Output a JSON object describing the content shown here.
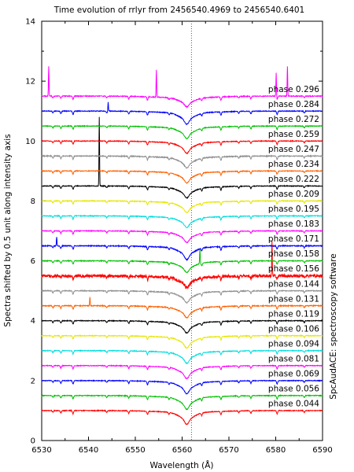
{
  "chart_data": {
    "type": "line",
    "title": "Time evolution of rrlyr from 2456540.4969 to 2456540.6401",
    "xlabel": "Wavelength (Å)",
    "ylabel": "Spectra shifted by 0.5 unit along intensity axis",
    "side_note": "SpcAudACE: spectroscopy software",
    "xlim": [
      6530,
      6590
    ],
    "ylim": [
      0,
      14
    ],
    "x_ticks": [
      "6530",
      "6540",
      "6550",
      "6560",
      "6570",
      "6580",
      "6590"
    ],
    "y_ticks": [
      "0",
      "2",
      "4",
      "6",
      "8",
      "10",
      "12",
      "14"
    ],
    "reference_line_x": 6562,
    "grid": false,
    "legend": "labels at right end of each spectrum",
    "line_center": 6561,
    "telluric_lines": [
      6532.4,
      6534.1,
      6536.7,
      6543.9,
      6548.6,
      6552.6,
      6557.2,
      6564.2,
      6568.3,
      6572.1,
      6574.7,
      6580.3,
      6586.1
    ],
    "series": [
      {
        "name": "phase 0.044",
        "offset": 1.0,
        "color": "#ff0000",
        "depth": 0.4,
        "noise": 0.012,
        "spikes": []
      },
      {
        "name": "phase 0.056",
        "offset": 1.5,
        "color": "#00c000",
        "depth": 0.4,
        "noise": 0.012,
        "spikes": []
      },
      {
        "name": "phase 0.069",
        "offset": 2.0,
        "color": "#0000ff",
        "depth": 0.38,
        "noise": 0.012,
        "spikes": []
      },
      {
        "name": "phase 0.081",
        "offset": 2.5,
        "color": "#ff00ff",
        "depth": 0.37,
        "noise": 0.012,
        "spikes": []
      },
      {
        "name": "phase 0.094",
        "offset": 3.0,
        "color": "#00dddd",
        "depth": 0.36,
        "noise": 0.012,
        "spikes": []
      },
      {
        "name": "phase 0.106",
        "offset": 3.5,
        "color": "#e6e600",
        "depth": 0.35,
        "noise": 0.012,
        "spikes": []
      },
      {
        "name": "phase 0.119",
        "offset": 4.0,
        "color": "#000000",
        "depth": 0.35,
        "noise": 0.012,
        "spikes": []
      },
      {
        "name": "phase 0.131",
        "offset": 4.5,
        "color": "#ff6000",
        "depth": 0.34,
        "noise": 0.014,
        "spikes": [
          [
            6540.3,
            0.3
          ]
        ]
      },
      {
        "name": "phase 0.144",
        "offset": 5.0,
        "color": "#909090",
        "depth": 0.34,
        "noise": 0.014,
        "spikes": []
      },
      {
        "name": "phase 0.156",
        "offset": 5.5,
        "color": "#ff0000",
        "depth": 0.33,
        "noise": 0.05,
        "spikes": [
          [
            6579.2,
            1.2
          ]
        ]
      },
      {
        "name": "phase 0.158",
        "offset": 6.0,
        "color": "#00c000",
        "depth": 0.33,
        "noise": 0.012,
        "spikes": [
          [
            6563.8,
            0.5
          ]
        ]
      },
      {
        "name": "phase 0.171",
        "offset": 6.5,
        "color": "#0000ff",
        "depth": 0.4,
        "noise": 0.015,
        "spikes": [
          [
            6533.2,
            0.3
          ]
        ]
      },
      {
        "name": "phase 0.183",
        "offset": 7.0,
        "color": "#ff00ff",
        "depth": 0.33,
        "noise": 0.012,
        "spikes": []
      },
      {
        "name": "phase 0.195",
        "offset": 7.5,
        "color": "#00dddd",
        "depth": 0.33,
        "noise": 0.012,
        "spikes": []
      },
      {
        "name": "phase 0.209",
        "offset": 8.0,
        "color": "#e6e600",
        "depth": 0.33,
        "noise": 0.012,
        "spikes": []
      },
      {
        "name": "phase 0.222",
        "offset": 8.5,
        "color": "#000000",
        "depth": 0.34,
        "noise": 0.012,
        "spikes": [
          [
            6542.3,
            2.3
          ]
        ]
      },
      {
        "name": "phase 0.234",
        "offset": 9.0,
        "color": "#ff6000",
        "depth": 0.34,
        "noise": 0.012,
        "spikes": []
      },
      {
        "name": "phase 0.247",
        "offset": 9.5,
        "color": "#909090",
        "depth": 0.34,
        "noise": 0.015,
        "spikes": []
      },
      {
        "name": "phase 0.259",
        "offset": 10.0,
        "color": "#ff0000",
        "depth": 0.35,
        "noise": 0.012,
        "spikes": []
      },
      {
        "name": "phase 0.272",
        "offset": 10.5,
        "color": "#00c000",
        "depth": 0.36,
        "noise": 0.012,
        "spikes": []
      },
      {
        "name": "phase 0.284",
        "offset": 11.0,
        "color": "#0000ff",
        "depth": 0.38,
        "noise": 0.012,
        "spikes": [
          [
            6544.2,
            0.3
          ]
        ]
      },
      {
        "name": "phase 0.296",
        "offset": 11.5,
        "color": "#ff00ff",
        "depth": 0.3,
        "noise": 0.014,
        "spikes": [
          [
            6531.5,
            1.0
          ],
          [
            6554.5,
            0.9
          ],
          [
            6580.1,
            0.8
          ],
          [
            6582.5,
            1.0
          ]
        ]
      }
    ]
  }
}
